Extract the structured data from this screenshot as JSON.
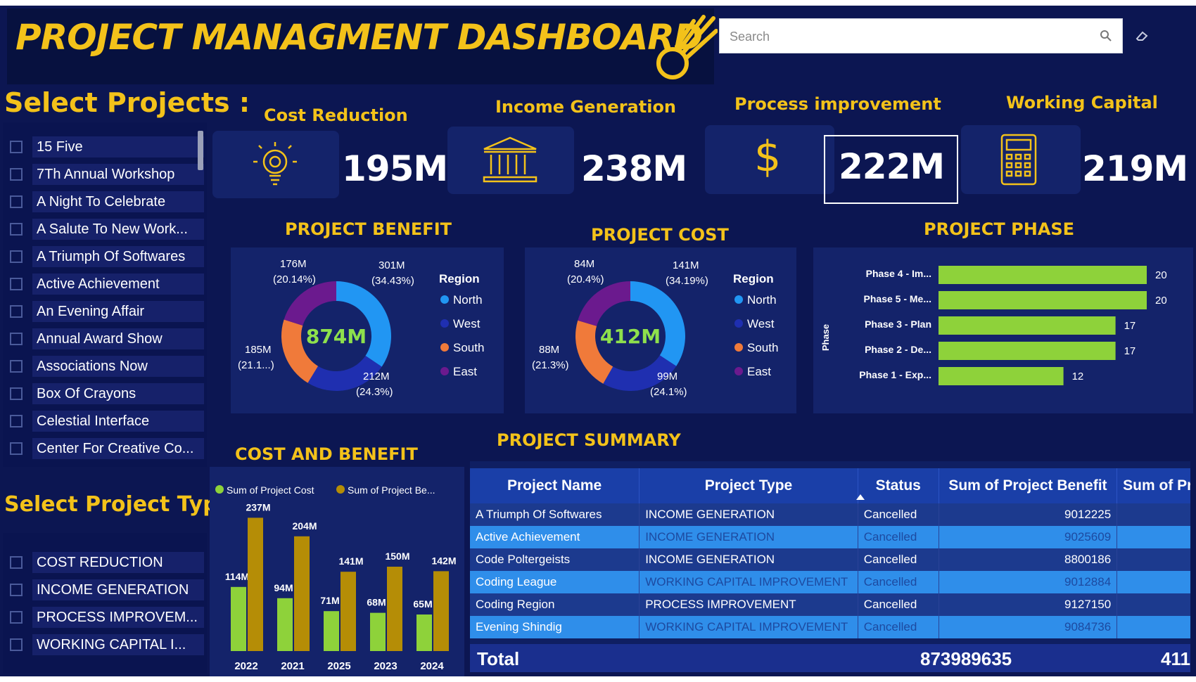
{
  "header": {
    "title": "PROJECT MANAGMENT DASHBOARD",
    "search_placeholder": "Search"
  },
  "projects_slicer": {
    "title": "Select Projects :",
    "items": [
      "15 Five",
      "7Th Annual Workshop",
      "A Night To Celebrate",
      "A Salute To New Work...",
      "A Triumph Of Softwares",
      "Active Achievement",
      "An Evening Affair",
      "Annual Award Show",
      "Associations Now",
      "Box Of Crayons",
      "Celestial Interface",
      "Center For Creative Co..."
    ]
  },
  "type_slicer": {
    "title": "Select Project Type :",
    "items": [
      "COST REDUCTION",
      "INCOME GENERATION",
      "PROCESS IMPROVEM...",
      "WORKING CAPITAL I..."
    ]
  },
  "kpis": [
    {
      "title": "Cost Reduction",
      "value": "195M",
      "icon": "lightbulb-icon"
    },
    {
      "title": "Income Generation",
      "value": "238M",
      "icon": "bank-icon"
    },
    {
      "title": "Process improvement",
      "value": "222M",
      "icon": "dollar-icon"
    },
    {
      "title": "Working Capital",
      "value": "219M",
      "icon": "calculator-icon"
    }
  ],
  "colors": {
    "background": "#0c1652",
    "accent": "#f3c21a",
    "north": "#2196f3",
    "west": "#1f2fb0",
    "south": "#f07a3a",
    "east": "#6b1a8e",
    "bar_green": "#8ed23a",
    "bar_gold": "#b58d06"
  },
  "charts": {
    "benefit_title": "PROJECT BENEFIT",
    "cost_title": "PROJECT COST",
    "phase_title": "PROJECT PHASE",
    "cost_benefit_title": "COST AND BENEFIT",
    "legend_title": "Region",
    "phase_axis_label": "Phase"
  },
  "chart_data": [
    {
      "type": "pie",
      "title": "PROJECT BENEFIT",
      "center_label": "874M",
      "legend_title": "Region",
      "categories": [
        "North",
        "West",
        "South",
        "East"
      ],
      "values": [
        301,
        212,
        185,
        176
      ],
      "labels": [
        {
          "value": "301M",
          "pct": "(34.43%)"
        },
        {
          "value": "212M",
          "pct": "(24.3%)"
        },
        {
          "value": "185M",
          "pct": "(21.1...)"
        },
        {
          "value": "176M",
          "pct": "(20.14%)"
        }
      ]
    },
    {
      "type": "pie",
      "title": "PROJECT COST",
      "center_label": "412M",
      "legend_title": "Region",
      "categories": [
        "North",
        "West",
        "South",
        "East"
      ],
      "values": [
        141,
        99,
        88,
        84
      ],
      "labels": [
        {
          "value": "141M",
          "pct": "(34.19%)"
        },
        {
          "value": "99M",
          "pct": "(24.1%)"
        },
        {
          "value": "88M",
          "pct": "(21.3%)"
        },
        {
          "value": "84M",
          "pct": "(20.4%)"
        }
      ]
    },
    {
      "type": "bar",
      "title": "PROJECT PHASE",
      "ylabel": "Phase",
      "categories": [
        "Phase 4 - Im...",
        "Phase 5 - Me...",
        "Phase 3 - Plan",
        "Phase 2 - De...",
        "Phase 1 - Exp..."
      ],
      "values": [
        20,
        20,
        17,
        17,
        12
      ],
      "xlim": [
        0,
        20
      ]
    },
    {
      "type": "bar",
      "title": "COST AND BENEFIT",
      "categories": [
        "2022",
        "2021",
        "2025",
        "2023",
        "2024"
      ],
      "series": [
        {
          "name": "Sum of  Project Cost",
          "values": [
            114,
            94,
            71,
            68,
            65
          ],
          "labels": [
            "114M",
            "94M",
            "71M",
            "68M",
            "65M"
          ]
        },
        {
          "name": "Sum of  Project Be...",
          "values": [
            237,
            204,
            141,
            150,
            142
          ],
          "labels": [
            "237M",
            "204M",
            "141M",
            "150M",
            "142M"
          ]
        }
      ],
      "ylim": [
        0,
        250
      ]
    }
  ],
  "summary": {
    "title": "PROJECT SUMMARY",
    "columns": [
      "Project Name",
      "Project Type",
      "Status",
      "Sum of Project Benefit",
      "Sum of Pro"
    ],
    "rows": [
      [
        "A Triumph Of Softwares",
        "INCOME GENERATION",
        "Cancelled",
        "9012225",
        ""
      ],
      [
        "Active Achievement",
        "INCOME GENERATION",
        "Cancelled",
        "9025609",
        ""
      ],
      [
        "Code Poltergeists",
        "INCOME GENERATION",
        "Cancelled",
        "8800186",
        ""
      ],
      [
        "Coding League",
        "WORKING CAPITAL IMPROVEMENT",
        "Cancelled",
        "9012884",
        ""
      ],
      [
        "Coding Region",
        "PROCESS IMPROVEMENT",
        "Cancelled",
        "9127150",
        ""
      ],
      [
        "Evening Shindig",
        "WORKING CAPITAL IMPROVEMENT",
        "Cancelled",
        "9084736",
        ""
      ]
    ],
    "total_label": "Total",
    "total_benefit": "873989635",
    "total_cost": "411"
  }
}
